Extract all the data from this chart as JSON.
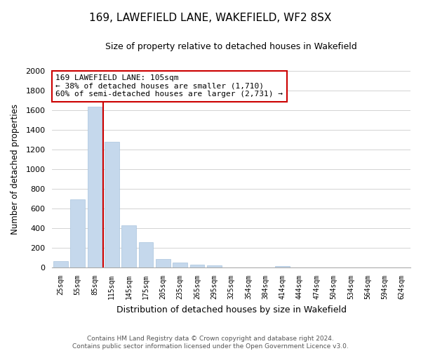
{
  "title": "169, LAWEFIELD LANE, WAKEFIELD, WF2 8SX",
  "subtitle": "Size of property relative to detached houses in Wakefield",
  "xlabel": "Distribution of detached houses by size in Wakefield",
  "ylabel": "Number of detached properties",
  "bar_labels": [
    "25sqm",
    "55sqm",
    "85sqm",
    "115sqm",
    "145sqm",
    "175sqm",
    "205sqm",
    "235sqm",
    "265sqm",
    "295sqm",
    "325sqm",
    "354sqm",
    "384sqm",
    "414sqm",
    "444sqm",
    "474sqm",
    "504sqm",
    "534sqm",
    "564sqm",
    "594sqm",
    "624sqm"
  ],
  "bar_values": [
    65,
    695,
    1630,
    1275,
    430,
    255,
    88,
    52,
    30,
    22,
    0,
    0,
    0,
    15,
    0,
    0,
    0,
    0,
    0,
    0,
    0
  ],
  "bar_color": "#c5d8ec",
  "bar_edge_color": "#a8c4de",
  "ylim": [
    0,
    2000
  ],
  "yticks": [
    0,
    200,
    400,
    600,
    800,
    1000,
    1200,
    1400,
    1600,
    1800,
    2000
  ],
  "property_line_color": "#cc0000",
  "annotation_text_line1": "169 LAWEFIELD LANE: 105sqm",
  "annotation_text_line2": "← 38% of detached houses are smaller (1,710)",
  "annotation_text_line3": "60% of semi-detached houses are larger (2,731) →",
  "annotation_box_color": "#ffffff",
  "annotation_box_edge": "#cc0000",
  "footer_line1": "Contains HM Land Registry data © Crown copyright and database right 2024.",
  "footer_line2": "Contains public sector information licensed under the Open Government Licence v3.0.",
  "background_color": "#ffffff",
  "grid_color": "#cccccc",
  "fig_width": 6.0,
  "fig_height": 5.0,
  "dpi": 100
}
